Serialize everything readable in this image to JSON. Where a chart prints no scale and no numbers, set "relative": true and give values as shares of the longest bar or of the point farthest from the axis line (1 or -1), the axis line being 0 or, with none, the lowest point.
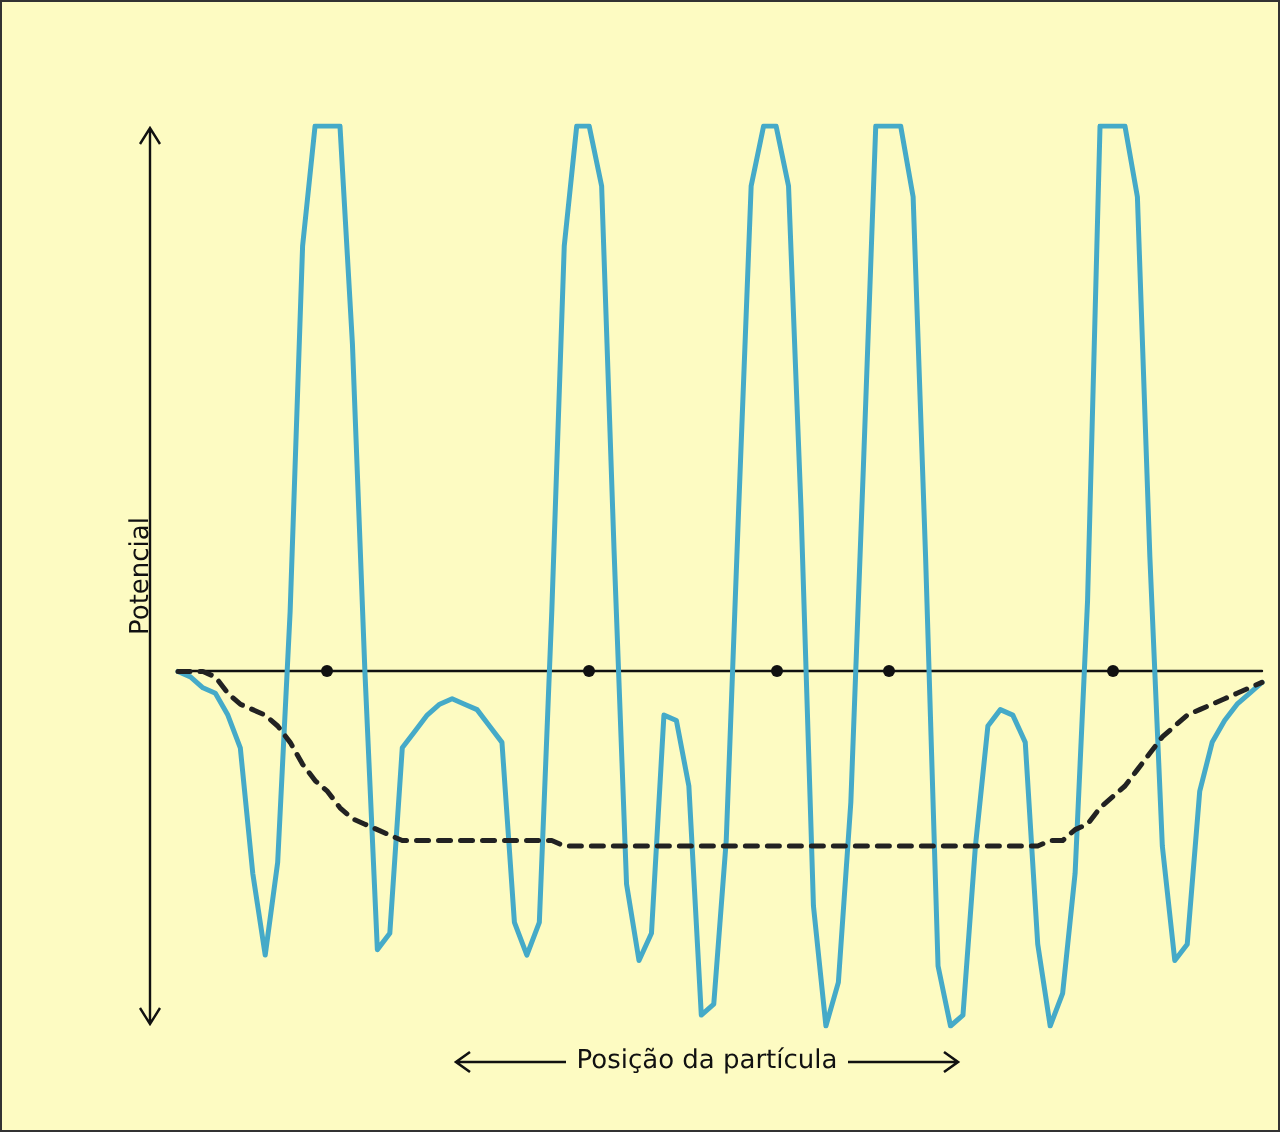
{
  "chart_data": {
    "type": "line",
    "relative": true,
    "ylabel": "Potencial",
    "xlabel": "Posição da partícula",
    "categories": [
      null,
      null,
      null,
      null,
      null,
      null,
      null,
      null,
      null,
      null,
      null,
      null,
      null,
      null,
      null,
      null,
      null,
      null,
      null,
      null,
      null,
      null,
      null,
      null,
      null,
      null,
      null,
      null,
      null,
      null,
      null,
      null,
      null,
      null,
      null,
      null,
      null,
      null,
      null,
      null,
      null,
      null,
      null,
      null,
      null,
      null,
      null,
      null,
      null,
      null,
      null,
      null,
      null,
      null,
      null,
      null,
      null,
      null,
      null,
      null,
      null,
      null,
      null,
      null,
      null,
      null,
      null,
      null,
      null,
      null,
      null,
      null,
      null,
      null,
      null,
      null,
      null,
      null,
      null,
      null,
      null,
      null,
      null,
      null,
      null,
      null,
      null,
      null
    ],
    "series": [
      {
        "color": "#45aac8",
        "marker": "none",
        "values": [
          0,
          -0.01,
          -0.03,
          -0.04,
          -0.08,
          -0.14,
          -0.37,
          -0.52,
          -0.35,
          0.11,
          0.78,
          1,
          1,
          1,
          0.6,
          0,
          -0.51,
          -0.48,
          -0.14,
          -0.11,
          -0.08,
          -0.06,
          -0.05,
          -0.06,
          -0.07,
          -0.1,
          -0.13,
          -0.46,
          -0.52,
          -0.46,
          0.11,
          0.78,
          1,
          1,
          0.89,
          0.22,
          -0.39,
          -0.53,
          -0.48,
          -0.08,
          -0.09,
          -0.21,
          -0.63,
          -0.61,
          -0.31,
          0.3,
          0.89,
          1,
          1,
          0.89,
          0.3,
          -0.43,
          -0.65,
          -0.57,
          -0.24,
          0.37,
          1,
          1,
          1,
          0.87,
          0.21,
          -0.54,
          -0.65,
          -0.63,
          -0.32,
          -0.1,
          -0.07,
          -0.08,
          -0.13,
          -0.5,
          -0.65,
          -0.59,
          -0.37,
          0.13,
          1,
          1,
          1,
          0.87,
          0.21,
          -0.32,
          -0.53,
          -0.5,
          -0.22,
          -0.13,
          -0.09,
          -0.06,
          -0.04,
          -0.02
        ]
      },
      {
        "color": "#222222",
        "marker": "none",
        "line_style": "dashed",
        "values": [
          0,
          0,
          0,
          -0.01,
          -0.04,
          -0.06,
          -0.07,
          -0.08,
          -0.1,
          -0.13,
          -0.17,
          -0.2,
          -0.22,
          -0.25,
          -0.27,
          -0.28,
          -0.29,
          -0.3,
          -0.31,
          -0.31,
          -0.31,
          -0.31,
          -0.31,
          -0.31,
          -0.31,
          -0.31,
          -0.31,
          -0.31,
          -0.31,
          -0.31,
          -0.31,
          -0.32,
          -0.32,
          -0.32,
          -0.32,
          -0.32,
          -0.32,
          -0.32,
          -0.32,
          -0.32,
          -0.32,
          -0.32,
          -0.32,
          -0.32,
          -0.32,
          -0.32,
          -0.32,
          -0.32,
          -0.32,
          -0.32,
          -0.32,
          -0.32,
          -0.32,
          -0.32,
          -0.32,
          -0.32,
          -0.32,
          -0.32,
          -0.32,
          -0.32,
          -0.32,
          -0.32,
          -0.32,
          -0.32,
          -0.32,
          -0.32,
          -0.32,
          -0.32,
          -0.32,
          -0.32,
          -0.31,
          -0.31,
          -0.29,
          -0.28,
          -0.25,
          -0.23,
          -0.21,
          -0.18,
          -0.15,
          -0.12,
          -0.1,
          -0.08,
          -0.07,
          -0.06,
          -0.05,
          -0.04,
          -0.03,
          -0.02
        ]
      }
    ]
  }
}
